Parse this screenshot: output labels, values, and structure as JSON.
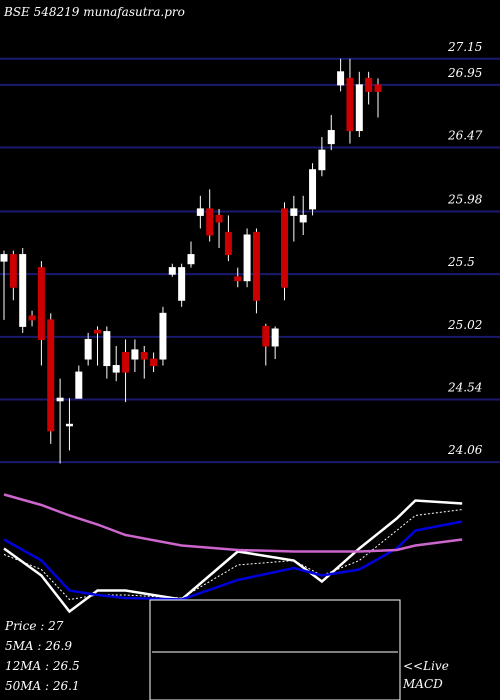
{
  "chart_data": [
    {
      "type": "candlestick",
      "title": "BSE 548219 munafasutra.pro",
      "ylim": [
        24.0,
        27.6
      ],
      "yticks": [
        27.15,
        26.95,
        26.47,
        25.98,
        25.5,
        25.02,
        24.54,
        24.06
      ],
      "up_color": "#ffffff",
      "down_color": "#cc0000",
      "grid_color": "#1a1a6e",
      "open": [
        25.6,
        25.65,
        25.1,
        25.18,
        25.55,
        25.15,
        24.53,
        24.34,
        24.55,
        24.85,
        25.07,
        24.8,
        24.75,
        24.9,
        24.85,
        24.9,
        24.85,
        24.85,
        25.5,
        25.3,
        25.58,
        25.95,
        26.0,
        25.95,
        25.82,
        25.48,
        25.45,
        25.82,
        25.1,
        24.95,
        26.0,
        25.95,
        25.9,
        26.0,
        26.3,
        26.5,
        26.95,
        27.0,
        26.6,
        27.0,
        26.95
      ],
      "high": [
        25.68,
        25.68,
        25.7,
        25.22,
        25.6,
        25.2,
        24.7,
        24.55,
        24.8,
        25.05,
        25.1,
        25.1,
        24.95,
        25.0,
        25.0,
        24.95,
        24.9,
        25.25,
        25.58,
        25.58,
        25.75,
        26.1,
        26.15,
        26.0,
        25.95,
        25.55,
        25.85,
        25.85,
        25.12,
        25.1,
        26.05,
        26.1,
        26.1,
        26.35,
        26.55,
        26.72,
        27.15,
        27.15,
        27.05,
        27.05,
        27.0
      ],
      "low": [
        25.15,
        25.3,
        25.05,
        25.1,
        24.8,
        24.2,
        24.05,
        24.15,
        24.55,
        24.8,
        24.8,
        24.7,
        24.68,
        24.52,
        24.75,
        24.7,
        24.75,
        24.8,
        25.48,
        25.25,
        25.55,
        25.85,
        25.75,
        25.7,
        25.6,
        25.4,
        25.4,
        25.2,
        24.8,
        24.85,
        25.3,
        25.75,
        25.8,
        25.95,
        26.25,
        26.45,
        26.9,
        26.5,
        26.55,
        26.8,
        26.7
      ],
      "close": [
        25.65,
        25.4,
        25.65,
        25.15,
        25.0,
        24.3,
        24.55,
        24.35,
        24.75,
        25.0,
        25.05,
        25.06,
        24.8,
        24.75,
        24.92,
        24.85,
        24.8,
        25.2,
        25.55,
        25.55,
        25.65,
        26.0,
        25.8,
        25.9,
        25.65,
        25.45,
        25.8,
        25.3,
        24.95,
        25.08,
        25.4,
        26.0,
        25.95,
        26.3,
        26.45,
        26.6,
        27.05,
        26.6,
        26.95,
        26.9,
        26.9
      ]
    },
    {
      "type": "line",
      "x": [
        0,
        4,
        7,
        10,
        13,
        19,
        25,
        31,
        34,
        38,
        42,
        44,
        49
      ],
      "ylim": [
        0,
        100
      ],
      "series": [
        {
          "name": "Price : 27",
          "color": "#ffffff",
          "values": [
            61,
            43,
            19,
            33,
            33,
            27,
            59,
            53,
            39,
            61,
            81,
            93,
            91
          ]
        },
        {
          "name": "5MA : 26.9",
          "color": "#ffffff",
          "dash": true,
          "values": [
            57,
            47,
            27,
            30,
            30,
            28,
            50,
            53,
            43,
            53,
            73,
            83,
            87
          ]
        },
        {
          "name": "12MA : 26.5",
          "color": "#0000dd",
          "values": [
            67,
            53,
            33,
            30,
            28,
            27,
            40,
            48,
            43,
            47,
            61,
            73,
            79
          ]
        },
        {
          "name": "50MA : 26.1",
          "color": "#cc66cc",
          "values": [
            97,
            90,
            83,
            77,
            70,
            63,
            60,
            59,
            59,
            59,
            60,
            63,
            67
          ]
        }
      ],
      "live_label": "<<Live",
      "macd_label": "MACD"
    }
  ]
}
